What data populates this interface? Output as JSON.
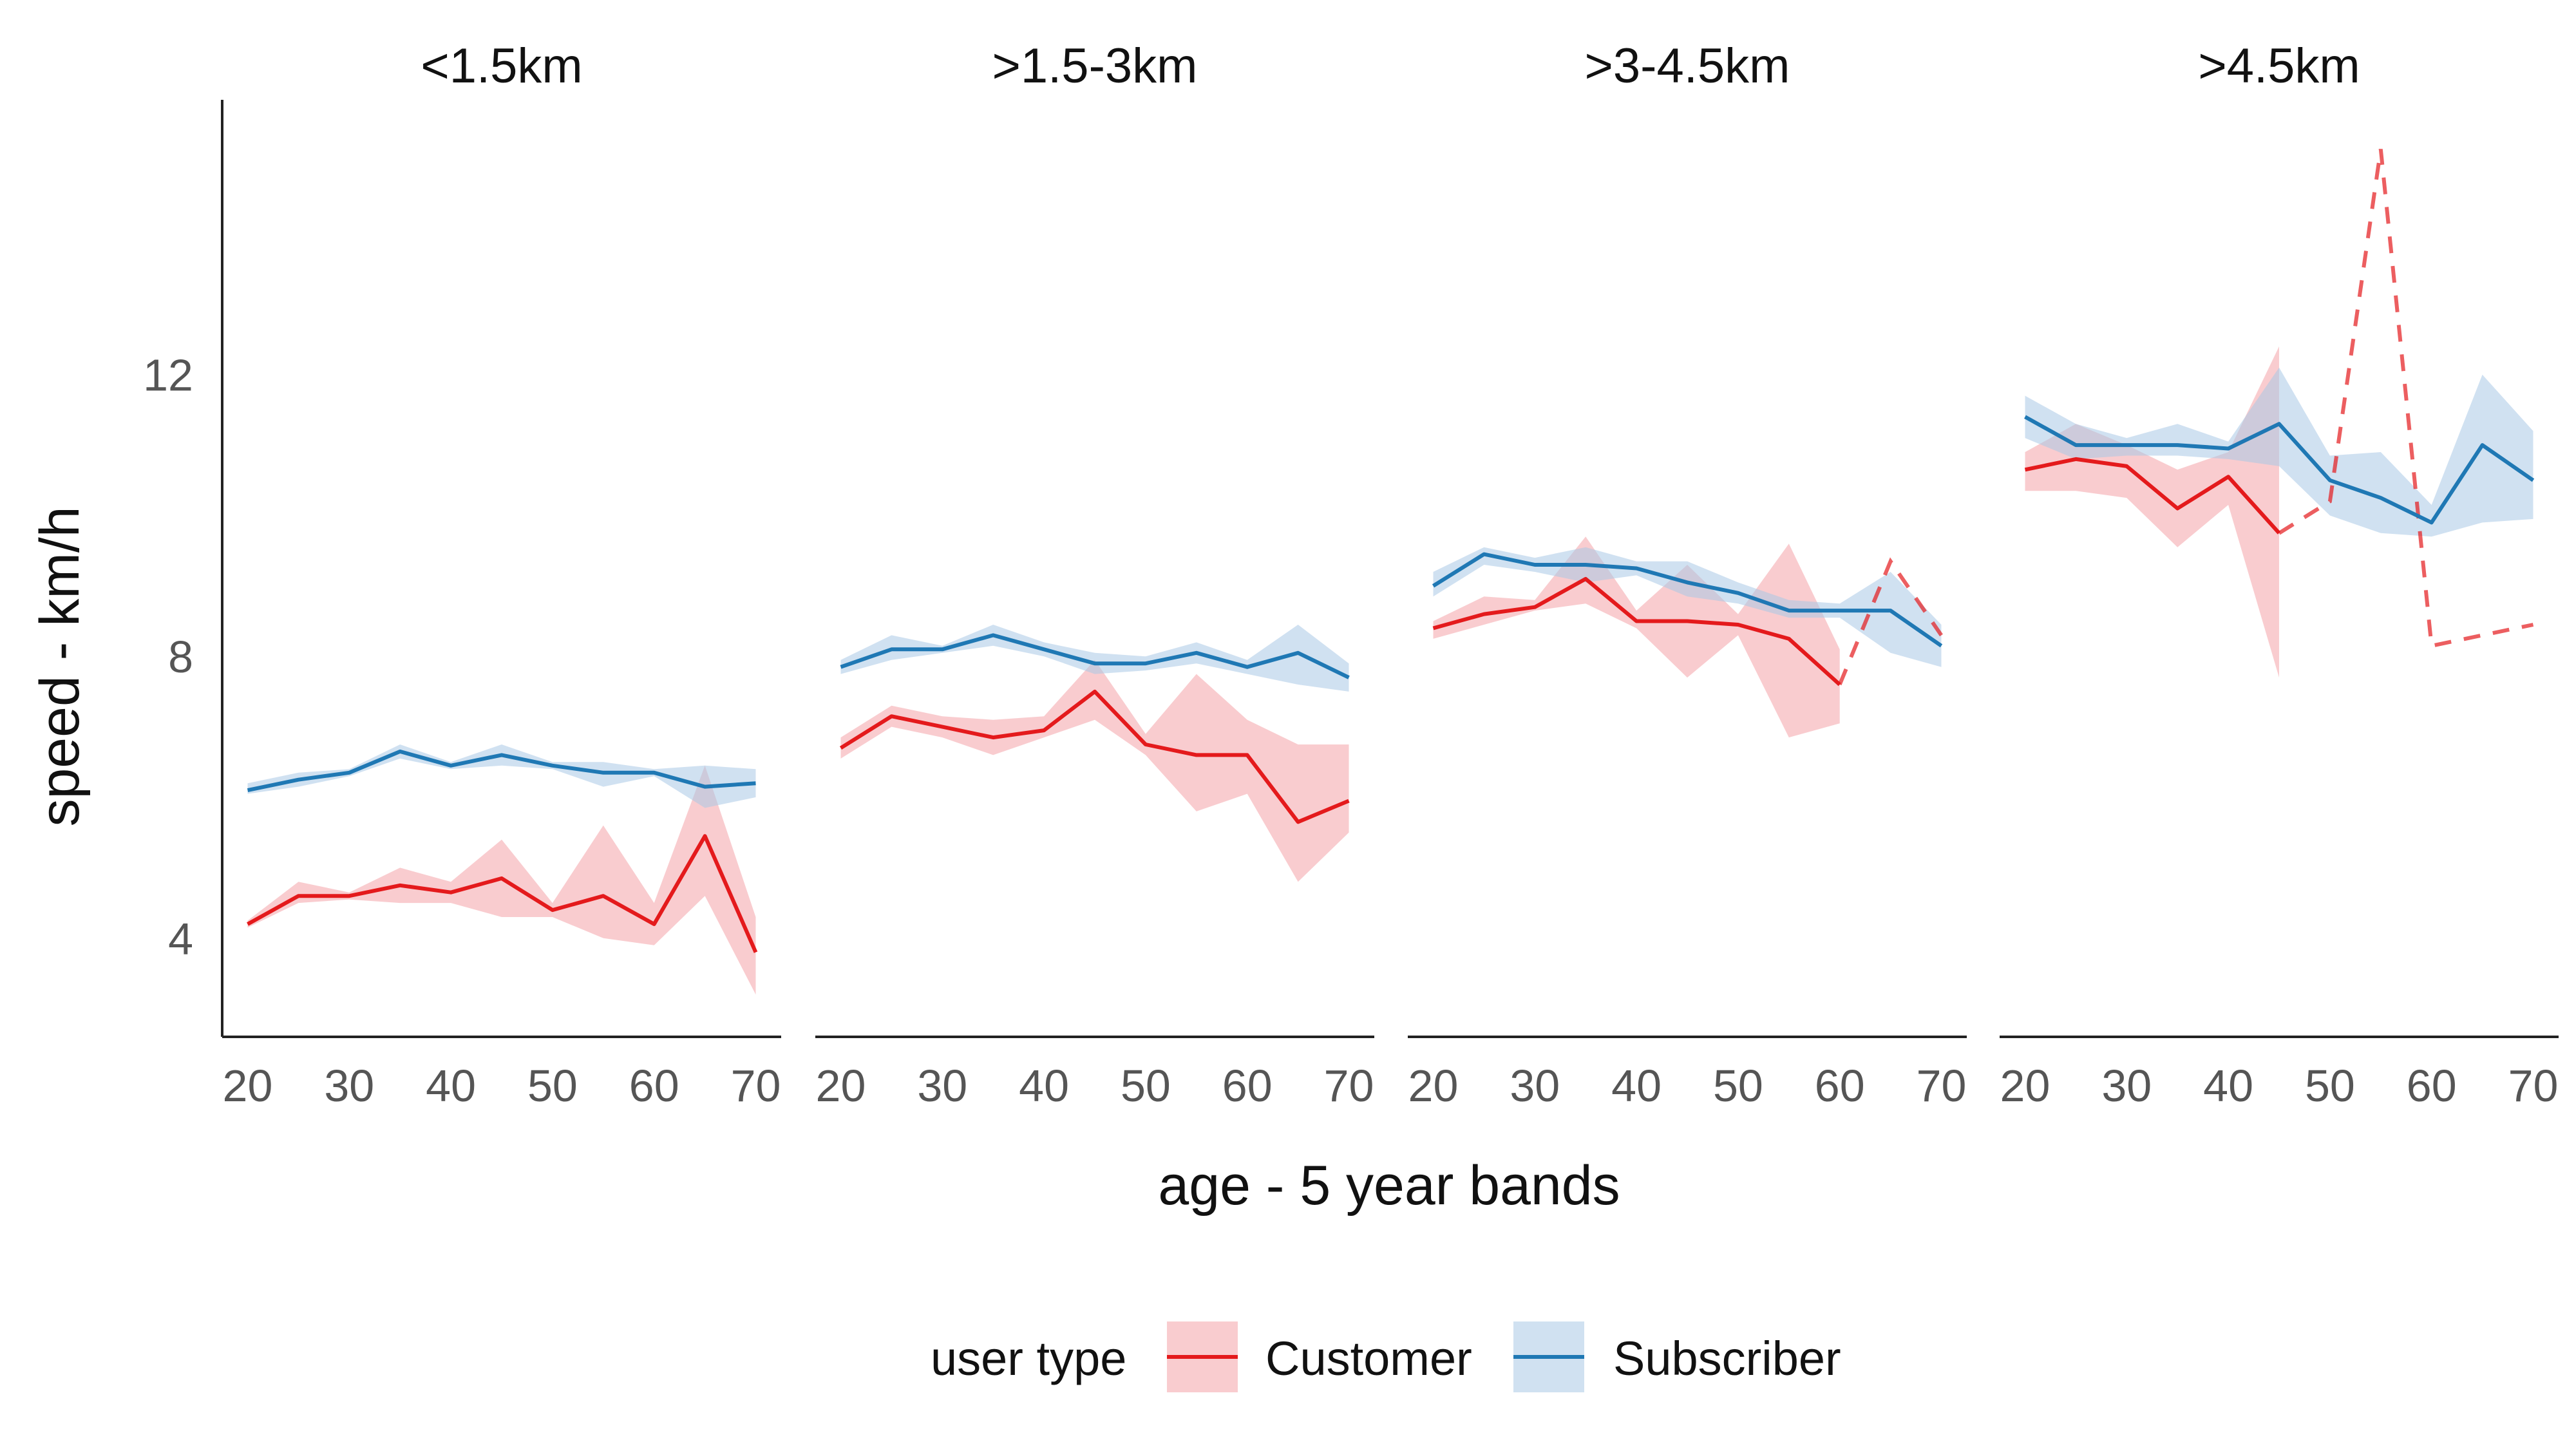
{
  "chart_data": {
    "type": "line",
    "xlabel": "age - 5 year bands",
    "ylabel": "speed - km/h",
    "x_ticks": [
      20,
      30,
      40,
      50,
      60,
      70
    ],
    "y_ticks": [
      4,
      8,
      12
    ],
    "xlim": [
      17.5,
      72.5
    ],
    "ylim": [
      2.6,
      15.9
    ],
    "grid": false,
    "legend": {
      "title": "user type",
      "position": "bottom",
      "entries": [
        "Customer",
        "Subscriber"
      ]
    },
    "colors": {
      "Customer": "#e41a1c",
      "Customer_band": "#f4a3a8",
      "Subscriber": "#1f78b4",
      "Subscriber_band": "#a9c9e6"
    },
    "facets": [
      {
        "title": "<1.5km",
        "series": [
          {
            "name": "Customer",
            "x": [
              20,
              25,
              30,
              35,
              40,
              45,
              50,
              55,
              60,
              65,
              70
            ],
            "y": [
              4.2,
              4.6,
              4.6,
              4.75,
              4.65,
              4.85,
              4.4,
              4.6,
              4.2,
              5.45,
              3.8
            ],
            "lower": [
              4.15,
              4.5,
              4.55,
              4.5,
              4.5,
              4.3,
              4.3,
              4.0,
              3.9,
              4.6,
              3.2
            ],
            "upper": [
              4.25,
              4.8,
              4.65,
              5.0,
              4.8,
              5.4,
              4.5,
              5.6,
              4.5,
              6.45,
              4.3
            ],
            "dashed_from_x": null
          },
          {
            "name": "Subscriber",
            "x": [
              20,
              25,
              30,
              35,
              40,
              45,
              50,
              55,
              60,
              65,
              70
            ],
            "y": [
              6.1,
              6.25,
              6.35,
              6.65,
              6.45,
              6.6,
              6.45,
              6.35,
              6.35,
              6.15,
              6.2
            ],
            "lower": [
              6.05,
              6.15,
              6.3,
              6.55,
              6.4,
              6.45,
              6.4,
              6.15,
              6.3,
              5.85,
              6.0
            ],
            "upper": [
              6.2,
              6.35,
              6.4,
              6.75,
              6.5,
              6.75,
              6.5,
              6.5,
              6.4,
              6.45,
              6.4
            ],
            "dashed_from_x": null
          }
        ]
      },
      {
        "title": ">1.5-3km",
        "series": [
          {
            "name": "Customer",
            "x": [
              20,
              25,
              30,
              35,
              40,
              45,
              50,
              55,
              60,
              65,
              70
            ],
            "y": [
              6.7,
              7.15,
              7.0,
              6.85,
              6.95,
              7.5,
              6.75,
              6.6,
              6.6,
              5.65,
              5.95
            ],
            "lower": [
              6.55,
              7.0,
              6.85,
              6.6,
              6.85,
              7.1,
              6.6,
              5.8,
              6.05,
              4.8,
              5.5
            ],
            "upper": [
              6.85,
              7.3,
              7.15,
              7.1,
              7.15,
              7.95,
              6.9,
              7.75,
              7.1,
              6.75,
              6.75
            ],
            "dashed_from_x": null
          },
          {
            "name": "Subscriber",
            "x": [
              20,
              25,
              30,
              35,
              40,
              45,
              50,
              55,
              60,
              65,
              70
            ],
            "y": [
              7.85,
              8.1,
              8.1,
              8.3,
              8.1,
              7.9,
              7.9,
              8.05,
              7.85,
              8.05,
              7.7
            ],
            "lower": [
              7.75,
              7.95,
              8.05,
              8.15,
              8.0,
              7.75,
              7.8,
              7.9,
              7.75,
              7.6,
              7.5
            ],
            "upper": [
              7.95,
              8.3,
              8.15,
              8.45,
              8.2,
              8.05,
              8.0,
              8.2,
              7.95,
              8.45,
              7.9
            ],
            "dashed_from_x": null
          }
        ]
      },
      {
        "title": ">3-4.5km",
        "series": [
          {
            "name": "Customer",
            "x": [
              20,
              25,
              30,
              35,
              40,
              45,
              50,
              55,
              60,
              65,
              70
            ],
            "y": [
              8.4,
              8.6,
              8.7,
              9.1,
              8.5,
              8.5,
              8.45,
              8.25,
              7.6,
              9.35,
              8.3
            ],
            "lower": [
              8.25,
              8.45,
              8.65,
              8.75,
              8.4,
              7.7,
              8.3,
              6.85,
              7.05,
              null,
              null
            ],
            "upper": [
              8.5,
              8.85,
              8.8,
              9.7,
              8.65,
              9.3,
              8.6,
              9.6,
              8.1,
              null,
              null
            ],
            "dashed_from_x": 60
          },
          {
            "name": "Subscriber",
            "x": [
              20,
              25,
              30,
              35,
              40,
              45,
              50,
              55,
              60,
              65,
              70
            ],
            "y": [
              9.0,
              9.45,
              9.3,
              9.3,
              9.25,
              9.05,
              8.9,
              8.65,
              8.65,
              8.65,
              8.15
            ],
            "lower": [
              8.85,
              9.3,
              9.2,
              9.05,
              9.15,
              8.85,
              8.75,
              8.55,
              8.55,
              8.05,
              7.85
            ],
            "upper": [
              9.2,
              9.55,
              9.4,
              9.55,
              9.35,
              9.35,
              9.05,
              8.8,
              8.75,
              9.2,
              8.45
            ],
            "dashed_from_x": null
          }
        ]
      },
      {
        "title": ">4.5km",
        "series": [
          {
            "name": "Customer",
            "x": [
              20,
              25,
              30,
              35,
              40,
              45,
              50,
              55,
              60,
              65,
              70
            ],
            "y": [
              10.65,
              10.8,
              10.7,
              10.1,
              10.55,
              9.75,
              10.2,
              15.2,
              8.15,
              8.3,
              8.45
            ],
            "lower": [
              10.35,
              10.35,
              10.25,
              9.55,
              10.15,
              7.7,
              null,
              null,
              null,
              null,
              null
            ],
            "upper": [
              10.9,
              11.3,
              11.0,
              10.65,
              10.9,
              12.4,
              null,
              null,
              null,
              null,
              null
            ],
            "dashed_from_x": 45
          },
          {
            "name": "Subscriber",
            "x": [
              20,
              25,
              30,
              35,
              40,
              45,
              50,
              55,
              60,
              65,
              70
            ],
            "y": [
              11.4,
              11.0,
              11.0,
              11.0,
              10.95,
              11.3,
              10.5,
              10.25,
              9.9,
              11.0,
              10.5
            ],
            "lower": [
              11.1,
              10.8,
              10.85,
              10.85,
              10.8,
              10.7,
              10.0,
              9.75,
              9.7,
              9.9,
              9.95
            ],
            "upper": [
              11.7,
              11.3,
              11.1,
              11.3,
              11.05,
              12.1,
              10.85,
              10.9,
              10.15,
              12.0,
              11.2
            ],
            "dashed_from_x": null
          }
        ]
      }
    ]
  }
}
